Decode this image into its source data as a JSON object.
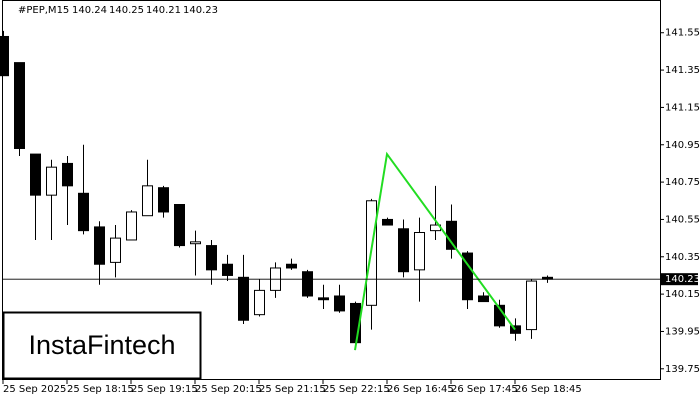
{
  "chart_data": {
    "type": "candlestick",
    "symbol": "#PEP,M15",
    "header_values": [
      140.24,
      140.25,
      140.21,
      140.23
    ],
    "watermark": "InstaFintech",
    "open": [
      141.53,
      141.39,
      140.9,
      140.68,
      140.85,
      140.69,
      140.51,
      140.32,
      140.44,
      140.57,
      140.72,
      140.63,
      140.42,
      140.41,
      140.31,
      140.24,
      140.04,
      140.17,
      140.31,
      140.27,
      140.13,
      140.14,
      140.1,
      140.09,
      140.55,
      140.5,
      140.28,
      140.49,
      140.54,
      140.37,
      140.14,
      140.09,
      139.98,
      139.96,
      140.24
    ],
    "high": [
      141.56,
      141.39,
      140.9,
      140.87,
      140.89,
      140.95,
      140.54,
      140.52,
      140.6,
      140.87,
      140.73,
      140.63,
      140.49,
      140.44,
      140.36,
      140.36,
      140.23,
      140.32,
      140.34,
      140.28,
      140.2,
      140.2,
      140.11,
      140.66,
      140.56,
      140.55,
      140.56,
      140.73,
      140.63,
      140.38,
      140.16,
      140.12,
      140.02,
      140.23,
      140.25
    ],
    "low": [
      141.32,
      140.89,
      140.44,
      140.44,
      140.52,
      140.47,
      140.2,
      140.24,
      140.44,
      140.57,
      140.56,
      140.4,
      140.25,
      140.2,
      140.22,
      139.99,
      140.03,
      140.13,
      140.28,
      140.13,
      140.07,
      140.05,
      139.88,
      139.96,
      140.52,
      140.24,
      140.11,
      140.44,
      140.34,
      140.07,
      140.11,
      139.97,
      139.9,
      139.91,
      140.21
    ],
    "close": [
      141.32,
      140.93,
      140.68,
      140.83,
      140.73,
      140.49,
      140.31,
      140.45,
      140.59,
      140.73,
      140.59,
      140.41,
      140.43,
      140.28,
      140.25,
      140.01,
      140.17,
      140.29,
      140.29,
      140.14,
      140.12,
      140.06,
      139.89,
      140.65,
      140.52,
      140.27,
      140.48,
      140.52,
      140.39,
      140.12,
      140.11,
      139.98,
      139.94,
      140.22,
      140.23
    ],
    "current_price": 140.23,
    "pattern": {
      "color": "#22dd22",
      "x": [
        22,
        24,
        32
      ],
      "values": [
        139.85,
        140.9,
        139.96
      ]
    },
    "ylim": [
      139.69,
      141.72
    ],
    "yticks": [
      141.55,
      141.35,
      141.15,
      140.95,
      140.75,
      140.55,
      140.35,
      140.15,
      139.95,
      139.75
    ],
    "xticks": [
      {
        "value": 0,
        "label": "25 Sep 2025"
      },
      {
        "value": 4,
        "label": "25 Sep 18:15"
      },
      {
        "value": 8,
        "label": "25 Sep 19:15"
      },
      {
        "value": 12,
        "label": "25 Sep 20:15"
      },
      {
        "value": 16,
        "label": "25 Sep 21:15"
      },
      {
        "value": 20,
        "label": "25 Sep 22:15"
      },
      {
        "value": 24,
        "label": "26 Sep 16:45"
      },
      {
        "value": 28,
        "label": "26 Sep 17:45"
      },
      {
        "value": 32,
        "label": "26 Sep 18:45"
      }
    ]
  }
}
